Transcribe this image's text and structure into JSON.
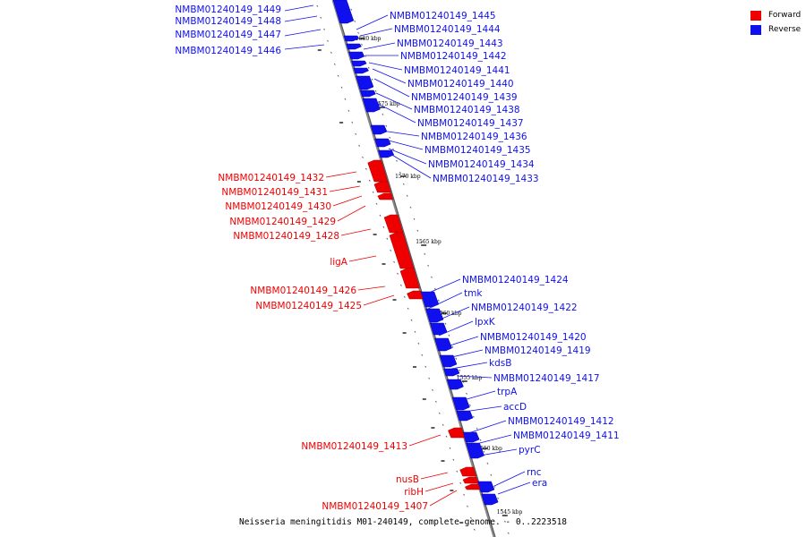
{
  "caption": "Neisseria meningitidis M01-240149, complete genome. - 0..2223518",
  "colors": {
    "forward": "#ee0000",
    "reverse": "#1010ee",
    "axis": "#888888"
  },
  "legend": [
    {
      "label": "Forward",
      "color": "#ee0000"
    },
    {
      "label": "Reverse",
      "color": "#1010ee"
    }
  ],
  "ticks": [
    "1580 kbp",
    "1575 kbp",
    "1570 kbp",
    "1565 kbp",
    "1560 kbp",
    "1555 kbp",
    "1550 kbp",
    "1545 kbp"
  ],
  "genes": {
    "reverse_left": [
      "NMBM01240149_1449",
      "NMBM01240149_1448",
      "NMBM01240149_1447",
      "NMBM01240149_1446"
    ],
    "reverse_right": [
      "NMBM01240149_1445",
      "NMBM01240149_1444",
      "NMBM01240149_1443",
      "NMBM01240149_1442",
      "NMBM01240149_1441",
      "NMBM01240149_1440",
      "NMBM01240149_1439",
      "NMBM01240149_1438",
      "NMBM01240149_1437",
      "NMBM01240149_1436",
      "NMBM01240149_1435",
      "NMBM01240149_1434",
      "NMBM01240149_1433",
      "NMBM01240149_1424",
      "tmk",
      "NMBM01240149_1422",
      "lpxK",
      "NMBM01240149_1420",
      "NMBM01240149_1419",
      "kdsB",
      "NMBM01240149_1417",
      "trpA",
      "accD",
      "NMBM01240149_1412",
      "NMBM01240149_1411",
      "pyrC",
      "rnc",
      "era"
    ],
    "forward": [
      "NMBM01240149_1432",
      "NMBM01240149_1431",
      "NMBM01240149_1430",
      "NMBM01240149_1429",
      "NMBM01240149_1428",
      "ligA",
      "NMBM01240149_1426",
      "NMBM01240149_1425",
      "NMBM01240149_1413",
      "nusB",
      "ribH",
      "NMBM01240149_1407"
    ]
  }
}
